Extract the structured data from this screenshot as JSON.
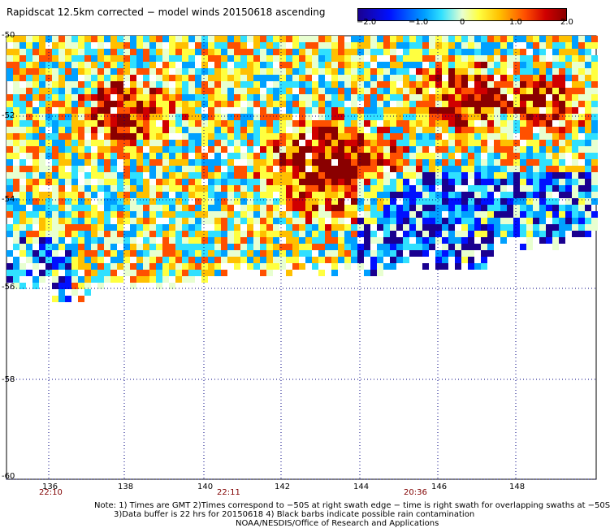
{
  "title": "Rapidscat 12.5km corrected − model winds 20150618 ascending",
  "colorbar": {
    "ticks": [
      "−2.0",
      "−1.0",
      "0",
      "1.0",
      "2.0"
    ],
    "colors": [
      "#1a0090",
      "#0010ff",
      "#00a0ff",
      "#30e0ff",
      "#e8ffd0",
      "#ffff40",
      "#ffc000",
      "#ff5000",
      "#d00000",
      "#8a0000"
    ],
    "range": [
      -2.0,
      2.0
    ]
  },
  "map": {
    "lat_labels": [
      "-50",
      "-52",
      "-54",
      "-56",
      "-58",
      "-60"
    ],
    "lon_labels": [
      "136",
      "138",
      "140",
      "142",
      "144",
      "146",
      "148"
    ],
    "times": [
      "22:10",
      "22:11",
      "20:36"
    ],
    "lat_range": [
      -60,
      -50
    ],
    "lon_range": [
      135.5,
      150
    ],
    "grid": true
  },
  "notes": [
    "Note: 1) Times are GMT 2)Times correspond to −50S at right swath edge − time is right swath for overlapping swaths at −50S",
    "3)Data buffer is 22 hrs for 20150618 4) Black barbs indicate possible rain contamination",
    "NOAA/NESDIS/Office of Research and Applications"
  ]
}
